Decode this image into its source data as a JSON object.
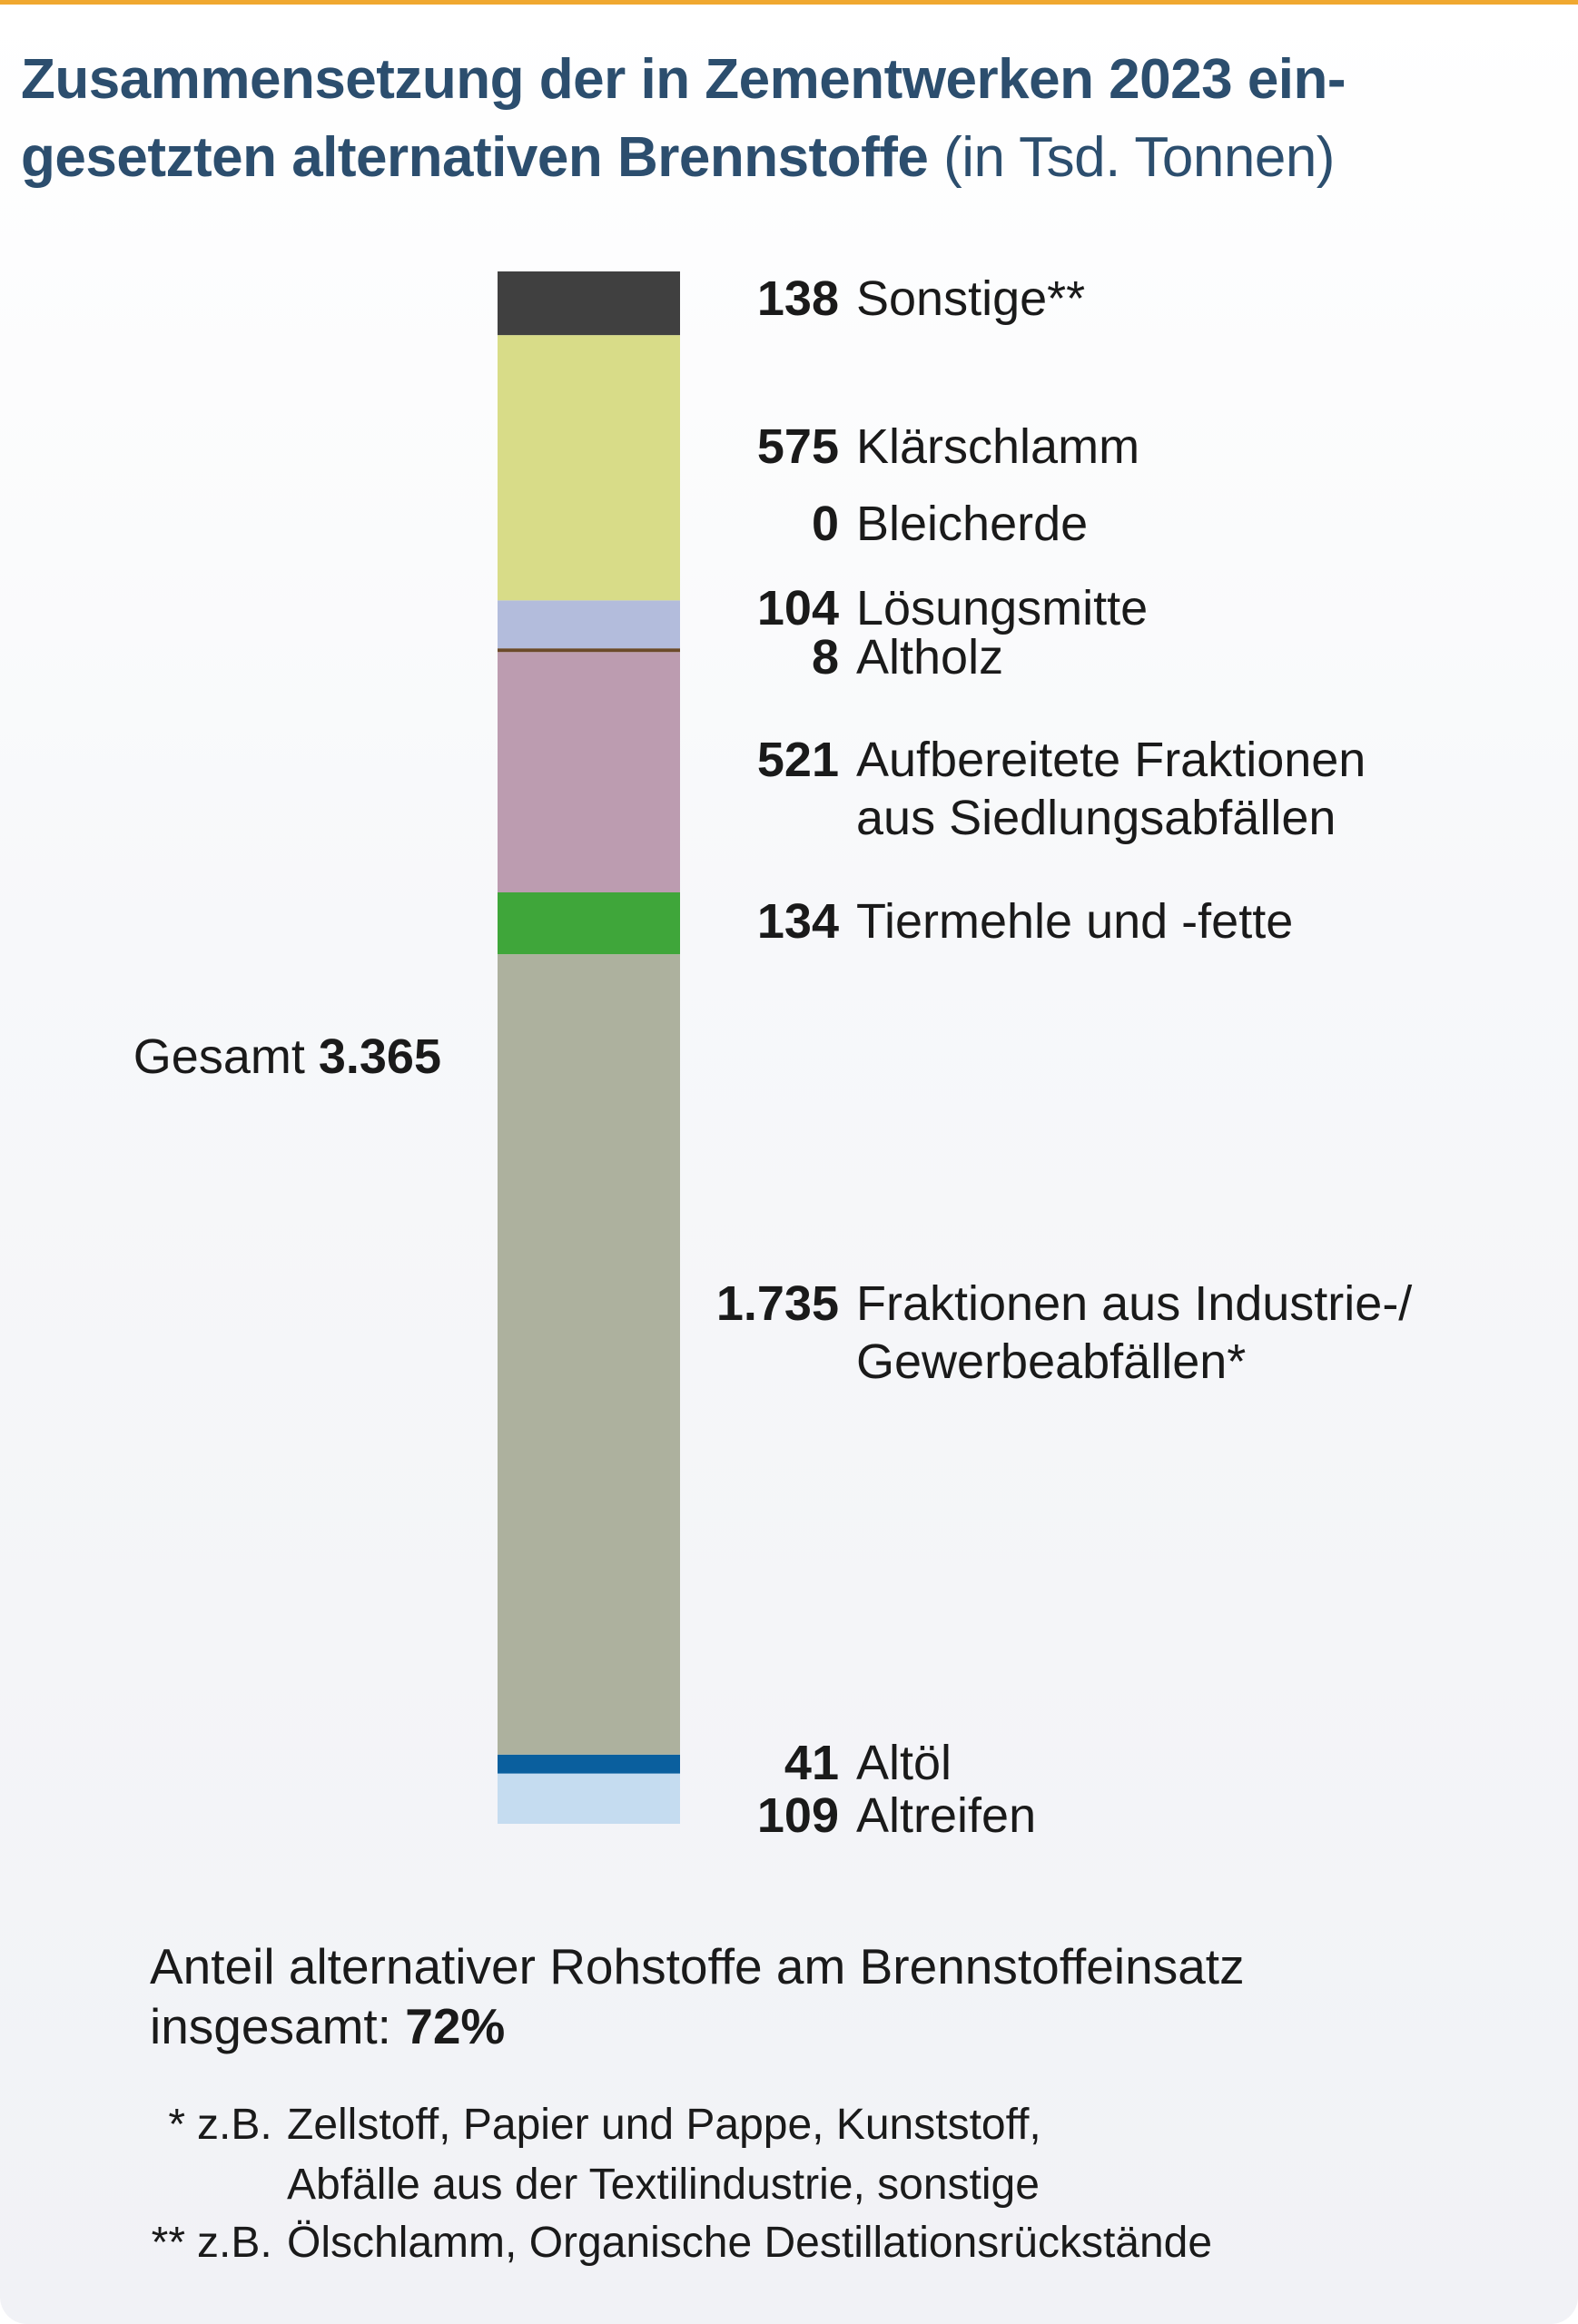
{
  "chart_data": {
    "type": "stacked-bar",
    "title": "Zusammensetzung der in Zementwerken 2023 ein-\ngesetzten alternativen Brennstoffe",
    "subtitle": "(in Tsd. Tonnen)",
    "series": [
      {
        "name": "Altreifen",
        "color": "#c5dcf0",
        "values": [
          109
        ]
      },
      {
        "name": "Altöl",
        "color": "#0a5f9e",
        "values": [
          41
        ]
      },
      {
        "name": "Fraktionen aus Industrie-/\nGewerbeabfällen*",
        "color": "#adb19e",
        "values": [
          1735
        ],
        "value_labels": [
          "1.735"
        ]
      },
      {
        "name": "Tiermehle und -fette",
        "color": "#3fa63a",
        "values": [
          134
        ]
      },
      {
        "name": "Aufbereitete Fraktionen\naus Siedlungsabfällen",
        "color": "#bc9cb0",
        "values": [
          521
        ]
      },
      {
        "name": "Altholz",
        "color": "#6b4a2a",
        "values": [
          8
        ]
      },
      {
        "name": "Lösungsmitte",
        "color": "#b3bcdc",
        "values": [
          104
        ]
      },
      {
        "name": "Bleicherde",
        "color": "#9a9a9a",
        "values": [
          0
        ]
      },
      {
        "name": "Klärschlamm",
        "color": "#d8dc88",
        "values": [
          575
        ]
      },
      {
        "name": "Sonstige**",
        "color": "#404040",
        "values": [
          138
        ]
      }
    ],
    "total": {
      "label": "Gesamt",
      "value": 3365,
      "value_label": "3.365"
    },
    "note": {
      "text": "Anteil alternativer Rohstoffe am Brennstoffeinsatz\ninsgesamt:",
      "value": 72,
      "value_label": "72%"
    },
    "footnotes": [
      {
        "marker": "*",
        "prefix": "z.B.",
        "text": "Zellstoff, Papier und Pappe, Kunststoff,\nAbfälle aus der Textilindustrie, sonstige"
      },
      {
        "marker": "**",
        "prefix": "z.B.",
        "text": "Ölschlamm, Organische Destillationsrückstände"
      }
    ]
  }
}
